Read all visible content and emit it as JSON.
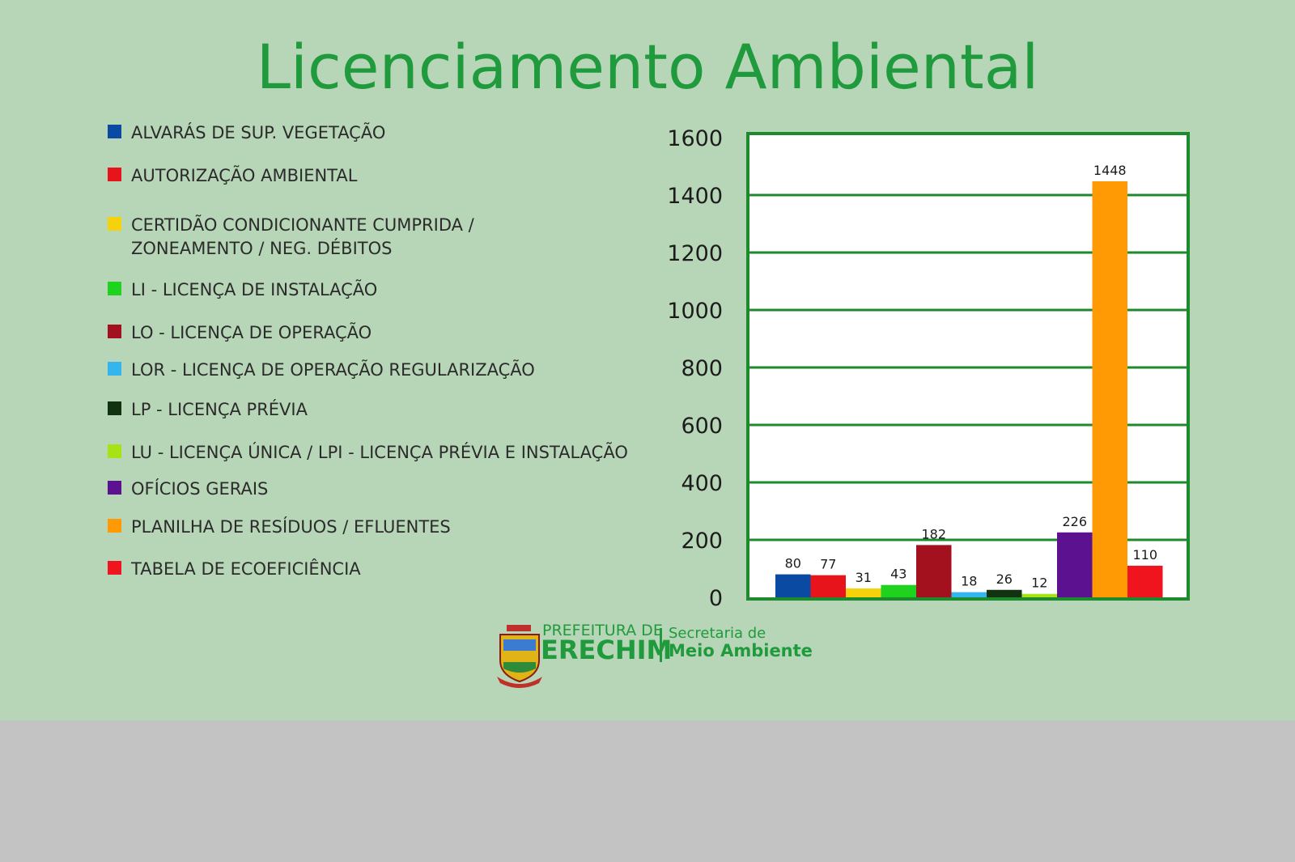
{
  "title": "Licenciamento Ambiental",
  "legend": [
    {
      "label": "ALVARÁS DE SUP. VEGETAÇÃO",
      "color": "#0b4aa2"
    },
    {
      "label": "AUTORIZAÇÃO AMBIENTAL",
      "color": "#e8141c"
    },
    {
      "label": "CERTIDÃO CONDICIONANTE CUMPRIDA /\nZONEAMENTO /  NEG. DÉBITOS",
      "color": "#f5d20b"
    },
    {
      "label": "LI - LICENÇA DE INSTALAÇÃO",
      "color": "#1ed21e"
    },
    {
      "label": "LO - LICENÇA DE OPERAÇÃO",
      "color": "#a3111e"
    },
    {
      "label": "LOR - LICENÇA DE OPERAÇÃO REGULARIZAÇÃO",
      "color": "#33b6ee"
    },
    {
      "label": "LP - LICENÇA PRÉVIA",
      "color": "#12330f"
    },
    {
      "label": "LU - LICENÇA ÚNICA / LPI - LICENÇA PRÉVIA E INSTALAÇÃO",
      "color": "#a6e214"
    },
    {
      "label": "OFÍCIOS GERAIS",
      "color": "#5b1190"
    },
    {
      "label": "PLANILHA DE RESÍDUOS / EFLUENTES",
      "color": "#ff9a05"
    },
    {
      "label": "TABELA DE ECOEFICIÊNCIA",
      "color": "#f0141e"
    }
  ],
  "chart_data": {
    "type": "bar",
    "categories": [
      "ALVARÁS DE SUP. VEGETAÇÃO",
      "AUTORIZAÇÃO AMBIENTAL",
      "CERTIDÃO CONDICIONANTE CUMPRIDA / ZONEAMENTO /  NEG. DÉBITOS",
      "LI - LICENÇA DE INSTALAÇÃO",
      "LO - LICENÇA DE OPERAÇÃO",
      "LOR - LICENÇA DE OPERAÇÃO REGULARIZAÇÃO",
      "LP - LICENÇA PRÉVIA",
      "LU - LICENÇA ÚNICA / LPI - LICENÇA PRÉVIA E INSTALAÇÃO",
      "OFÍCIOS GERAIS",
      "PLANILHA DE RESÍDUOS / EFLUENTES",
      "TABELA DE ECOEFICIÊNCIA"
    ],
    "values": [
      80,
      77,
      31,
      43,
      182,
      18,
      26,
      12,
      226,
      1448,
      110
    ],
    "colors": [
      "#0b4aa2",
      "#e8141c",
      "#f5d20b",
      "#1ed21e",
      "#a3111e",
      "#33b6ee",
      "#12330f",
      "#a6e214",
      "#5b1190",
      "#ff9a05",
      "#f0141e"
    ],
    "yticks": [
      0,
      200,
      400,
      600,
      800,
      1000,
      1200,
      1400,
      1600
    ],
    "ylim": [
      0,
      1600
    ],
    "grid": true,
    "grid_color": "#1d8a2e",
    "frame_color": "#1d8a2e",
    "legend_position": "left"
  },
  "logo": {
    "line1": "PREFEITURA DE",
    "line2": "ERECHIM",
    "line3": "Secretaria de",
    "line4": "Meio Ambiente"
  }
}
